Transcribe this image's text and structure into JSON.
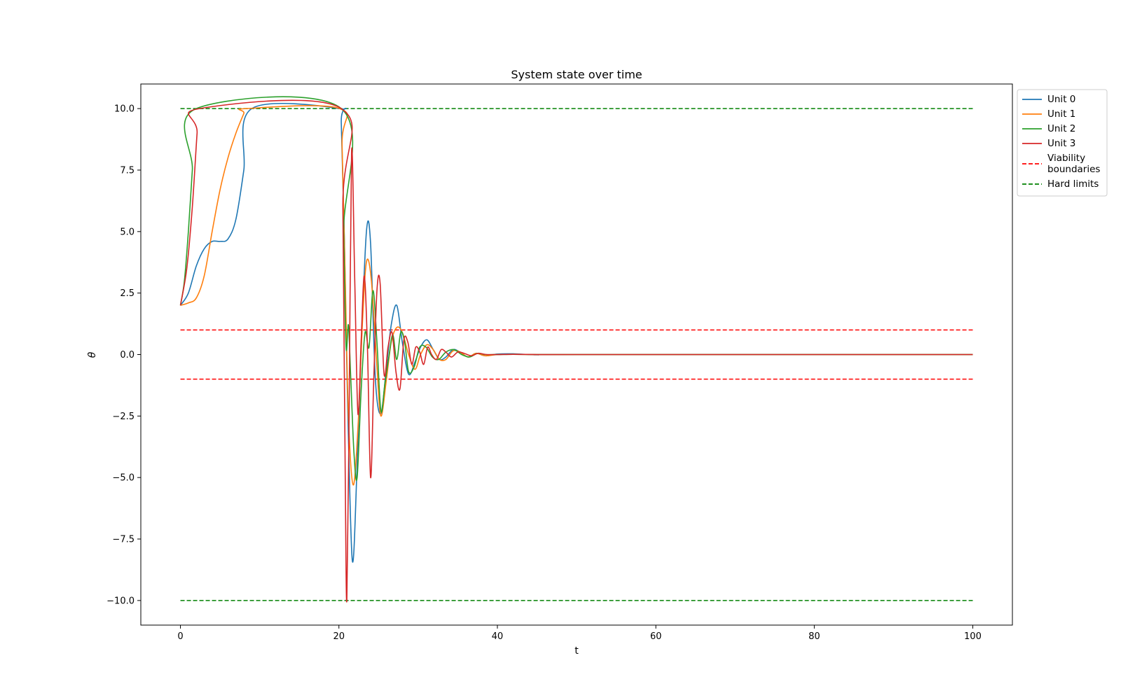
{
  "chart_data": {
    "type": "line",
    "title": "System state over time",
    "xlabel": "t",
    "ylabel": "θ",
    "xlim": [
      -5,
      105
    ],
    "ylim": [
      -11,
      11
    ],
    "xticks": [
      0,
      20,
      40,
      60,
      80,
      100
    ],
    "xtick_labels": [
      "0",
      "20",
      "40",
      "60",
      "80",
      "100"
    ],
    "yticks": [
      10,
      7.5,
      5,
      2.5,
      0,
      -2.5,
      -5,
      -7.5,
      -10
    ],
    "ytick_labels": [
      "10.0",
      "7.5",
      "5.0",
      "2.5",
      "0.0",
      "−2.5",
      "−5.0",
      "−7.5",
      "−10.0"
    ],
    "grid": false,
    "legend_position": "outside-top-right",
    "series": [
      {
        "name": "Unit 0",
        "color": "#1f77b4",
        "style": "solid",
        "x": [
          0,
          1,
          2,
          3,
          4,
          5,
          6,
          7,
          8,
          9,
          20,
          20.3,
          20.7,
          21.1,
          21.7,
          22.3,
          22.9,
          23.5,
          24.0,
          24.6,
          25.3,
          26.0,
          26.6,
          27.3,
          28.0,
          28.8,
          29.6,
          30.3,
          31.1,
          31.9,
          32.7,
          33.5,
          34.4,
          35.3,
          36.3,
          37.3,
          38.5,
          40,
          42,
          45,
          50,
          100
        ],
        "y": [
          2.0,
          2.5,
          3.6,
          4.3,
          4.6,
          4.6,
          4.7,
          5.5,
          7.5,
          10.0,
          10.0,
          9.4,
          4.5,
          -2.0,
          -8.4,
          -4.5,
          1.0,
          5.1,
          4.5,
          -1.0,
          -2.4,
          -0.5,
          1.2,
          2.0,
          0.5,
          -0.8,
          -0.3,
          0.3,
          0.6,
          0.2,
          -0.2,
          -0.1,
          0.2,
          0.1,
          -0.1,
          0.05,
          -0.05,
          0.02,
          0.03,
          -0.01,
          0.0,
          0.0
        ]
      },
      {
        "name": "Unit 1",
        "color": "#ff7f0e",
        "style": "solid",
        "x": [
          0,
          1,
          2,
          3,
          4,
          5,
          6,
          7,
          8,
          8.3,
          20.1,
          20.4,
          20.8,
          21.2,
          21.8,
          22.4,
          23.0,
          23.5,
          24.1,
          24.8,
          25.3,
          26.0,
          26.6,
          27.3,
          28.0,
          28.8,
          29.6,
          30.3,
          31.1,
          31.9,
          32.7,
          33.5,
          34.4,
          35.3,
          36.3,
          37.3,
          38.5,
          40,
          42,
          45,
          50,
          100
        ],
        "y": [
          2.0,
          2.1,
          2.3,
          3.2,
          5.0,
          6.7,
          8.0,
          9.0,
          9.8,
          10.0,
          10.0,
          8.5,
          3.0,
          -2.5,
          -5.3,
          -3.0,
          1.5,
          3.8,
          3.0,
          -0.5,
          -2.5,
          -1.0,
          0.5,
          1.1,
          0.9,
          0.0,
          -0.6,
          0.0,
          0.4,
          0.2,
          -0.2,
          -0.2,
          0.15,
          0.1,
          -0.1,
          0.05,
          -0.05,
          0.0,
          0.01,
          0.0,
          0.0,
          0.0
        ]
      },
      {
        "name": "Unit 2",
        "color": "#2ca02c",
        "style": "solid",
        "x": [
          0,
          0.5,
          1.0,
          1.5,
          2.0,
          20.3,
          20.6,
          20.9,
          21.2,
          21.5,
          21.9,
          22.3,
          22.8,
          23.3,
          23.8,
          24.3,
          24.8,
          25.3,
          25.8,
          26.3,
          26.8,
          27.3,
          27.8,
          28.3,
          28.8,
          29.5,
          30.2,
          31.0,
          31.8,
          32.6,
          33.5,
          34.5,
          35.5,
          36.5,
          37.5,
          38.5,
          40,
          42,
          45,
          50,
          100
        ],
        "y": [
          2.0,
          3.0,
          5.0,
          7.5,
          10.0,
          10.0,
          5.0,
          0.3,
          1.2,
          -1.0,
          -4.0,
          -5.0,
          -1.5,
          0.9,
          0.3,
          2.6,
          0.5,
          -2.3,
          -1.2,
          -0.1,
          0.8,
          -0.2,
          0.9,
          0.5,
          -0.7,
          -0.5,
          0.3,
          0.3,
          -0.1,
          -0.2,
          0.1,
          0.2,
          0.0,
          -0.1,
          0.05,
          0.0,
          0.0,
          0.01,
          0.0,
          0.0,
          0.0
        ]
      },
      {
        "name": "Unit 3",
        "color": "#d62728",
        "style": "solid",
        "x": [
          0,
          0.8,
          1.5,
          2.1,
          2.4,
          20.3,
          20.5,
          20.8,
          21.0,
          21.3,
          21.6,
          22.0,
          22.4,
          22.8,
          23.2,
          23.6,
          24.0,
          24.4,
          24.8,
          25.2,
          25.7,
          26.2,
          26.7,
          27.2,
          27.7,
          28.2,
          28.7,
          29.2,
          29.7,
          30.2,
          30.7,
          31.2,
          31.7,
          32.3,
          32.9,
          33.5,
          34.2,
          35.0,
          35.8,
          36.7,
          37.6,
          38.6,
          40,
          42,
          45,
          50,
          100
        ],
        "y": [
          2.0,
          3.5,
          6.0,
          9.0,
          10.0,
          10.0,
          6.0,
          -5.0,
          -10.0,
          -2.0,
          8.3,
          3.0,
          -2.4,
          0.5,
          3.2,
          0.3,
          -5.0,
          -1.0,
          2.6,
          2.9,
          -0.8,
          0.3,
          0.9,
          -0.7,
          -1.4,
          0.6,
          0.5,
          -0.4,
          0.3,
          0.1,
          -0.4,
          0.3,
          0.0,
          -0.2,
          0.2,
          0.1,
          -0.1,
          0.1,
          0.05,
          -0.05,
          0.05,
          0.0,
          0.0,
          0.01,
          0.0,
          0.0,
          0.0
        ]
      },
      {
        "name": "Viability boundaries",
        "color": "#ff0000",
        "style": "dashed",
        "x": [
          0,
          100
        ],
        "y": [
          1.0,
          1.0
        ],
        "extra_y": [
          -1.0,
          -1.0
        ]
      },
      {
        "name": "Hard limits",
        "color": "#008000",
        "style": "dashed",
        "x": [
          0,
          100
        ],
        "y": [
          10.0,
          10.0
        ],
        "extra_y": [
          -10.0,
          -10.0
        ]
      }
    ],
    "legend": [
      {
        "label_lines": [
          "Unit 0"
        ],
        "color": "#1f77b4",
        "style": "solid"
      },
      {
        "label_lines": [
          "Unit 1"
        ],
        "color": "#ff7f0e",
        "style": "solid"
      },
      {
        "label_lines": [
          "Unit 2"
        ],
        "color": "#2ca02c",
        "style": "solid"
      },
      {
        "label_lines": [
          "Unit 3"
        ],
        "color": "#d62728",
        "style": "solid"
      },
      {
        "label_lines": [
          "Viability",
          "boundaries"
        ],
        "color": "#ff0000",
        "style": "dashed"
      },
      {
        "label_lines": [
          "Hard limits"
        ],
        "color": "#008000",
        "style": "dashed"
      }
    ]
  }
}
